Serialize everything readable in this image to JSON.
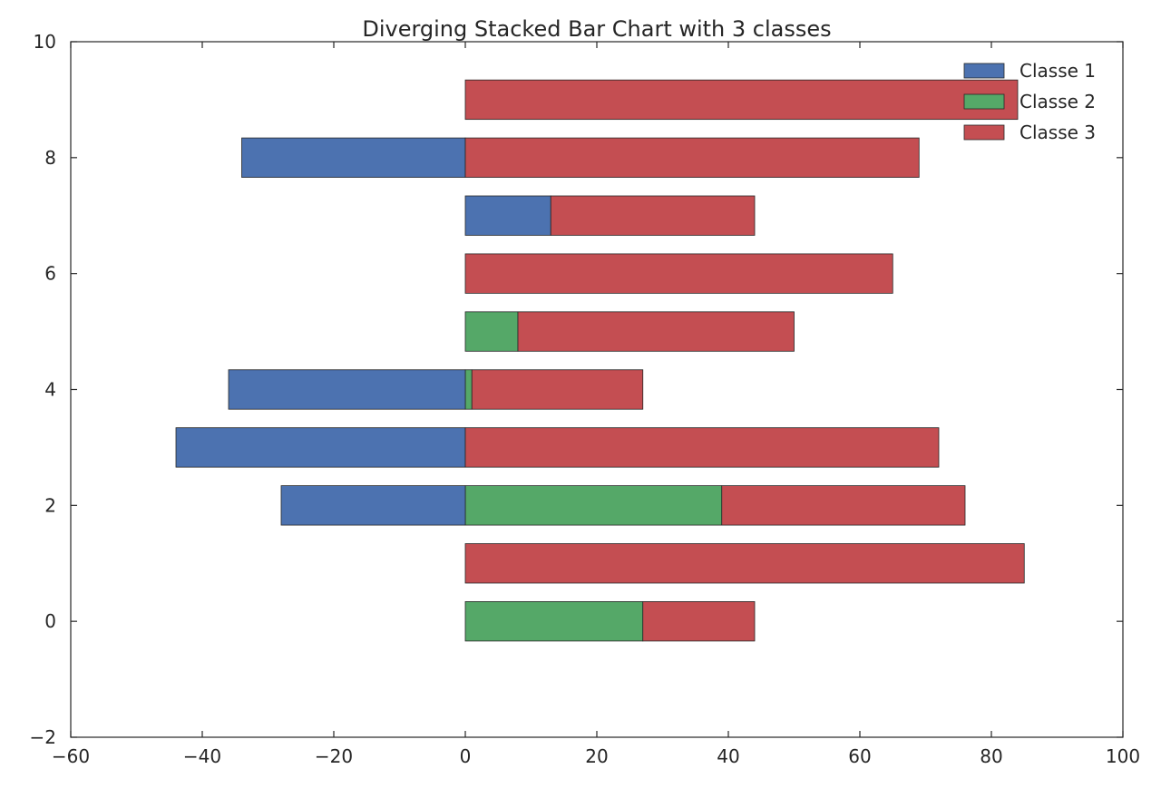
{
  "chart_data": {
    "type": "bar",
    "orientation": "horizontal",
    "stacking": "diverging",
    "title": "Diverging Stacked Bar Chart with 3 classes",
    "xlabel": "",
    "ylabel": "",
    "xlim": [
      -60,
      100
    ],
    "ylim": [
      -2,
      10
    ],
    "xticks": [
      -60,
      -40,
      -20,
      0,
      20,
      40,
      60,
      80,
      100
    ],
    "xtick_labels": [
      "−60",
      "−40",
      "−20",
      "0",
      "20",
      "40",
      "60",
      "80",
      "100"
    ],
    "yticks": [
      -2,
      0,
      2,
      4,
      6,
      8,
      10
    ],
    "ytick_labels": [
      "−2",
      "0",
      "2",
      "4",
      "6",
      "8",
      "10"
    ],
    "grid": false,
    "legend_position": "top-right",
    "categories": [
      0,
      1,
      2,
      3,
      4,
      5,
      6,
      7,
      8,
      9
    ],
    "series": [
      {
        "name": "Classe 1",
        "color": "#4c72b0",
        "values": [
          0,
          0,
          -28,
          -44,
          -36,
          0,
          0,
          13,
          -34,
          0
        ]
      },
      {
        "name": "Classe 2",
        "color": "#55a868",
        "values": [
          27,
          0,
          39,
          0,
          1,
          8,
          0,
          0,
          0,
          0
        ]
      },
      {
        "name": "Classe 3",
        "color": "#c44e52",
        "values": [
          17,
          85,
          37,
          72,
          26,
          42,
          65,
          31,
          69,
          84
        ]
      }
    ]
  }
}
